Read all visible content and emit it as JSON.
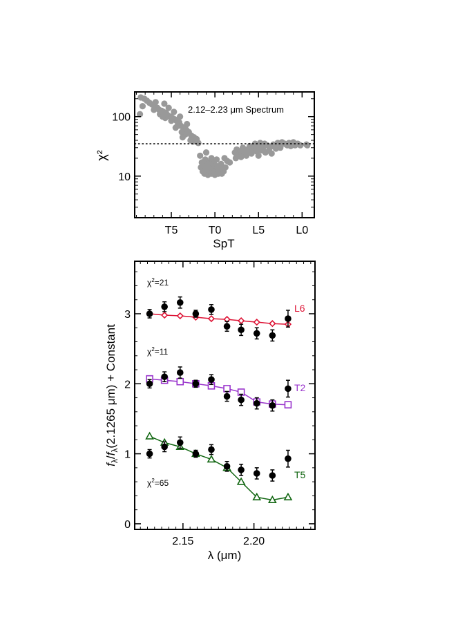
{
  "chart_data": [
    {
      "type": "scatter",
      "annotation": "2.12–2.23 μm Spectrum",
      "xlabel": "SpT",
      "ylabel": "χ²",
      "x_ticks": [
        {
          "value": 15,
          "label": "T5"
        },
        {
          "value": 10,
          "label": "T0"
        },
        {
          "value": 5,
          "label": "L5"
        },
        {
          "value": 0,
          "label": "L0"
        }
      ],
      "xlim": [
        19.2,
        -1.4
      ],
      "ylim": [
        2,
        260
      ],
      "yscale": "log",
      "y_ticks": [
        {
          "value": 10,
          "label": "10"
        },
        {
          "value": 100,
          "label": "100"
        }
      ],
      "reference_line": 35,
      "marker_color": "#999999",
      "series": [
        {
          "points": [
            [
              18.5,
              210
            ],
            [
              18.1,
              200
            ],
            [
              18.3,
              150
            ],
            [
              17.8,
              185
            ],
            [
              17.5,
              170
            ],
            [
              17.2,
              160
            ],
            [
              16.9,
              150
            ],
            [
              16.6,
              140
            ],
            [
              16.4,
              130
            ],
            [
              16.1,
              125
            ],
            [
              15.9,
              120
            ],
            [
              15.6,
              115
            ],
            [
              15.4,
              105
            ],
            [
              15.1,
              100
            ],
            [
              14.9,
              95
            ],
            [
              14.6,
              90
            ],
            [
              14.4,
              85
            ],
            [
              14.1,
              80
            ],
            [
              13.9,
              70
            ],
            [
              13.6,
              65
            ],
            [
              13.3,
              60
            ],
            [
              13.0,
              55
            ],
            [
              12.7,
              48
            ],
            [
              12.4,
              45
            ],
            [
              12.1,
              42
            ],
            [
              18.6,
              110
            ],
            [
              17.0,
              130
            ],
            [
              16.3,
              110
            ],
            [
              15.7,
              95
            ],
            [
              15.0,
              85
            ],
            [
              14.3,
              70
            ],
            [
              13.8,
              55
            ],
            [
              13.4,
              50
            ],
            [
              12.8,
              40
            ],
            [
              12.5,
              38
            ],
            [
              11.9,
              36
            ],
            [
              16.8,
              175
            ],
            [
              15.3,
              140
            ],
            [
              14.7,
              120
            ],
            [
              14.0,
              100
            ],
            [
              13.2,
              75
            ],
            [
              15.8,
              165
            ],
            [
              14.5,
              65
            ],
            [
              13.7,
              45
            ],
            [
              16.0,
              100
            ],
            [
              11.6,
              14
            ],
            [
              11.4,
              12
            ],
            [
              11.2,
              11
            ],
            [
              11.0,
              13
            ],
            [
              10.8,
              10.5
            ],
            [
              10.6,
              12
            ],
            [
              10.4,
              11
            ],
            [
              10.2,
              14
            ],
            [
              10.0,
              12
            ],
            [
              9.8,
              11
            ],
            [
              9.6,
              13
            ],
            [
              9.4,
              15
            ],
            [
              9.2,
              11
            ],
            [
              9.0,
              12
            ],
            [
              11.7,
              22
            ],
            [
              11.5,
              17
            ],
            [
              11.3,
              16
            ],
            [
              11.1,
              19
            ],
            [
              10.9,
              15
            ],
            [
              10.7,
              17
            ],
            [
              10.5,
              14
            ],
            [
              10.3,
              18
            ],
            [
              10.1,
              16
            ],
            [
              9.9,
              15
            ],
            [
              9.7,
              14
            ],
            [
              9.5,
              13
            ],
            [
              9.3,
              16
            ],
            [
              9.1,
              14
            ],
            [
              8.9,
              20
            ],
            [
              8.6,
              18
            ],
            [
              8.3,
              17
            ],
            [
              11.0,
              25
            ],
            [
              10.4,
              20
            ],
            [
              9.8,
              19
            ],
            [
              10.0,
              10.5
            ],
            [
              9.6,
              11
            ],
            [
              10.8,
              16
            ],
            [
              8.8,
              14
            ],
            [
              7.7,
              25
            ],
            [
              7.5,
              28
            ],
            [
              7.3,
              22
            ],
            [
              7.1,
              26
            ],
            [
              6.9,
              24
            ],
            [
              6.7,
              27
            ],
            [
              6.5,
              23
            ],
            [
              6.3,
              28
            ],
            [
              6.1,
              25
            ],
            [
              5.9,
              30
            ],
            [
              5.7,
              27
            ],
            [
              5.5,
              32
            ],
            [
              5.3,
              28
            ],
            [
              5.1,
              33
            ],
            [
              4.9,
              30
            ],
            [
              4.7,
              34
            ],
            [
              4.5,
              29
            ],
            [
              4.3,
              35
            ],
            [
              7.6,
              20
            ],
            [
              7.0,
              21
            ],
            [
              6.4,
              22
            ],
            [
              5.8,
              24
            ],
            [
              5.2,
              26
            ],
            [
              4.6,
              27
            ],
            [
              6.0,
              32
            ],
            [
              5.4,
              35
            ],
            [
              4.8,
              36
            ],
            [
              6.8,
              30
            ],
            [
              5.0,
              22
            ],
            [
              4.2,
              25
            ],
            [
              3.8,
              27
            ],
            [
              3.6,
              31
            ],
            [
              3.3,
              34
            ],
            [
              3.0,
              29
            ],
            [
              2.8,
              36
            ],
            [
              2.6,
              32
            ],
            [
              2.3,
              37
            ],
            [
              2.0,
              35
            ],
            [
              1.7,
              33
            ],
            [
              1.5,
              36
            ],
            [
              1.2,
              34
            ],
            [
              1.0,
              37
            ],
            [
              0.8,
              33
            ],
            [
              0.5,
              35
            ],
            [
              0.2,
              33
            ],
            [
              3.5,
              24
            ],
            [
              2.5,
              30
            ],
            [
              1.8,
              34
            ],
            [
              4.0,
              33
            ],
            [
              1.3,
              32
            ],
            [
              -0.5,
              34
            ],
            [
              -0.6,
              33
            ]
          ]
        }
      ]
    },
    {
      "type": "line",
      "xlabel": "λ (μm)",
      "ylabel_f1": "f",
      "ylabel_sub1": "λ",
      "ylabel_mid": "/",
      "ylabel_f2": "f",
      "ylabel_sub2": "λ",
      "ylabel_tail": "(2.1265 μm) + Constant",
      "xlim": [
        2.116,
        2.243
      ],
      "ylim": [
        -0.08,
        3.75
      ],
      "x_ticks": [
        {
          "value": 2.15,
          "label": "2.15"
        },
        {
          "value": 2.2,
          "label": "2.20"
        }
      ],
      "y_ticks": [
        {
          "value": 0,
          "label": "0"
        },
        {
          "value": 1,
          "label": "1"
        },
        {
          "value": 2,
          "label": "2"
        },
        {
          "value": 3,
          "label": "3"
        }
      ],
      "series": [
        {
          "name": "L6",
          "chi2_prefix": "χ",
          "chi2_sup": "2",
          "chi2_value": "=21",
          "color": "#dd1133",
          "marker": "diamond",
          "x": [
            2.1265,
            2.137,
            2.148,
            2.159,
            2.17,
            2.181,
            2.191,
            2.202,
            2.213,
            2.224
          ],
          "model": [
            3.0,
            2.98,
            2.97,
            2.95,
            2.93,
            2.92,
            2.9,
            2.88,
            2.86,
            2.85
          ],
          "observed": [
            3.0,
            3.1,
            3.16,
            3.0,
            3.06,
            2.82,
            2.77,
            2.72,
            2.69,
            2.93
          ],
          "error": [
            0.06,
            0.07,
            0.08,
            0.05,
            0.07,
            0.07,
            0.08,
            0.08,
            0.08,
            0.12
          ]
        },
        {
          "name": "T2",
          "chi2_prefix": "χ",
          "chi2_sup": "2",
          "chi2_value": "=11",
          "color": "#9933cc",
          "marker": "square",
          "x": [
            2.1265,
            2.137,
            2.148,
            2.159,
            2.17,
            2.181,
            2.191,
            2.202,
            2.213,
            2.224
          ],
          "model": [
            2.07,
            2.05,
            2.03,
            2.0,
            1.97,
            1.93,
            1.88,
            1.74,
            1.71,
            1.7
          ],
          "observed": [
            2.0,
            2.1,
            2.16,
            2.0,
            2.06,
            1.82,
            1.77,
            1.72,
            1.69,
            1.93
          ],
          "error": [
            0.06,
            0.07,
            0.08,
            0.05,
            0.07,
            0.07,
            0.08,
            0.08,
            0.08,
            0.12
          ]
        },
        {
          "name": "T5",
          "chi2_prefix": "χ",
          "chi2_sup": "2",
          "chi2_value": "=65",
          "color": "#116611",
          "marker": "triangle",
          "x": [
            2.1265,
            2.137,
            2.148,
            2.159,
            2.17,
            2.181,
            2.191,
            2.202,
            2.213,
            2.224
          ],
          "model": [
            1.25,
            1.16,
            1.1,
            1.0,
            0.92,
            0.8,
            0.6,
            0.38,
            0.34,
            0.38
          ],
          "observed": [
            1.0,
            1.1,
            1.16,
            1.0,
            1.06,
            0.82,
            0.77,
            0.72,
            0.69,
            0.93
          ],
          "error": [
            0.06,
            0.07,
            0.08,
            0.05,
            0.07,
            0.07,
            0.08,
            0.08,
            0.08,
            0.12
          ]
        }
      ]
    }
  ]
}
